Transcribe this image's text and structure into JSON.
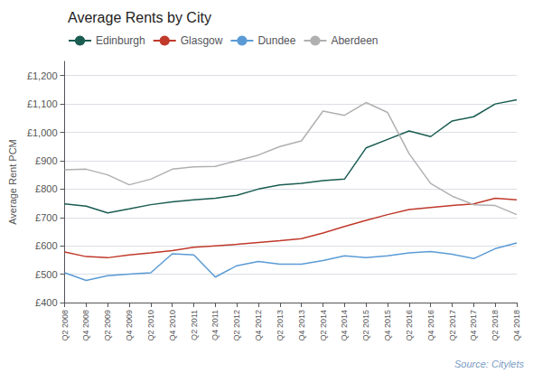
{
  "chart_data": {
    "type": "line",
    "title": "Average Rents by City",
    "ylabel": "Average Rent PCM",
    "annotations": [
      "Source: Citylets"
    ],
    "categories": [
      "Q2 2008",
      "Q4 2008",
      "Q2 2009",
      "Q4 2009",
      "Q2 2010",
      "Q4 2010",
      "Q2 2011",
      "Q4 2011",
      "Q2 2012",
      "Q4 2012",
      "Q2 2013",
      "Q4 2013",
      "Q2 2014",
      "Q4 2014",
      "Q2 2015",
      "Q4 2015",
      "Q2 2016",
      "Q4 2016",
      "Q2 2017",
      "Q4 2017",
      "Q2 2018",
      "Q4 2018"
    ],
    "series": [
      {
        "name": "Edinburgh",
        "color": "#1a5c52",
        "values": [
          748,
          740,
          716,
          730,
          745,
          755,
          762,
          768,
          778,
          800,
          815,
          820,
          830,
          835,
          945,
          975,
          1005,
          985,
          1040,
          1055,
          1100,
          1115
        ]
      },
      {
        "name": "Glasgow",
        "color": "#c0392b",
        "values": [
          578,
          562,
          558,
          568,
          575,
          583,
          595,
          600,
          605,
          612,
          618,
          625,
          645,
          668,
          690,
          710,
          728,
          735,
          742,
          748,
          768,
          762
        ]
      },
      {
        "name": "Dundee",
        "color": "#5b9bd5",
        "values": [
          505,
          478,
          495,
          500,
          505,
          572,
          568,
          490,
          530,
          545,
          535,
          535,
          548,
          565,
          558,
          565,
          575,
          580,
          570,
          555,
          590,
          610
        ]
      },
      {
        "name": "Aberdeen",
        "color": "#b0b0b0",
        "values": [
          868,
          870,
          850,
          815,
          835,
          870,
          878,
          880,
          900,
          920,
          950,
          970,
          1075,
          1060,
          1105,
          1070,
          925,
          820,
          775,
          745,
          742,
          710
        ]
      }
    ],
    "ylim": [
      400,
      1250
    ],
    "yticks": [
      {
        "value": 400,
        "label": "£400"
      },
      {
        "value": 500,
        "label": "£500"
      },
      {
        "value": 600,
        "label": "£600"
      },
      {
        "value": 700,
        "label": "£700"
      },
      {
        "value": 800,
        "label": "£800"
      },
      {
        "value": 900,
        "label": "£900"
      },
      {
        "value": 1000,
        "label": "£1,000"
      },
      {
        "value": 1100,
        "label": "£1,100"
      },
      {
        "value": 1200,
        "label": "£1,200"
      }
    ],
    "grid": true,
    "legend": "upper left"
  }
}
